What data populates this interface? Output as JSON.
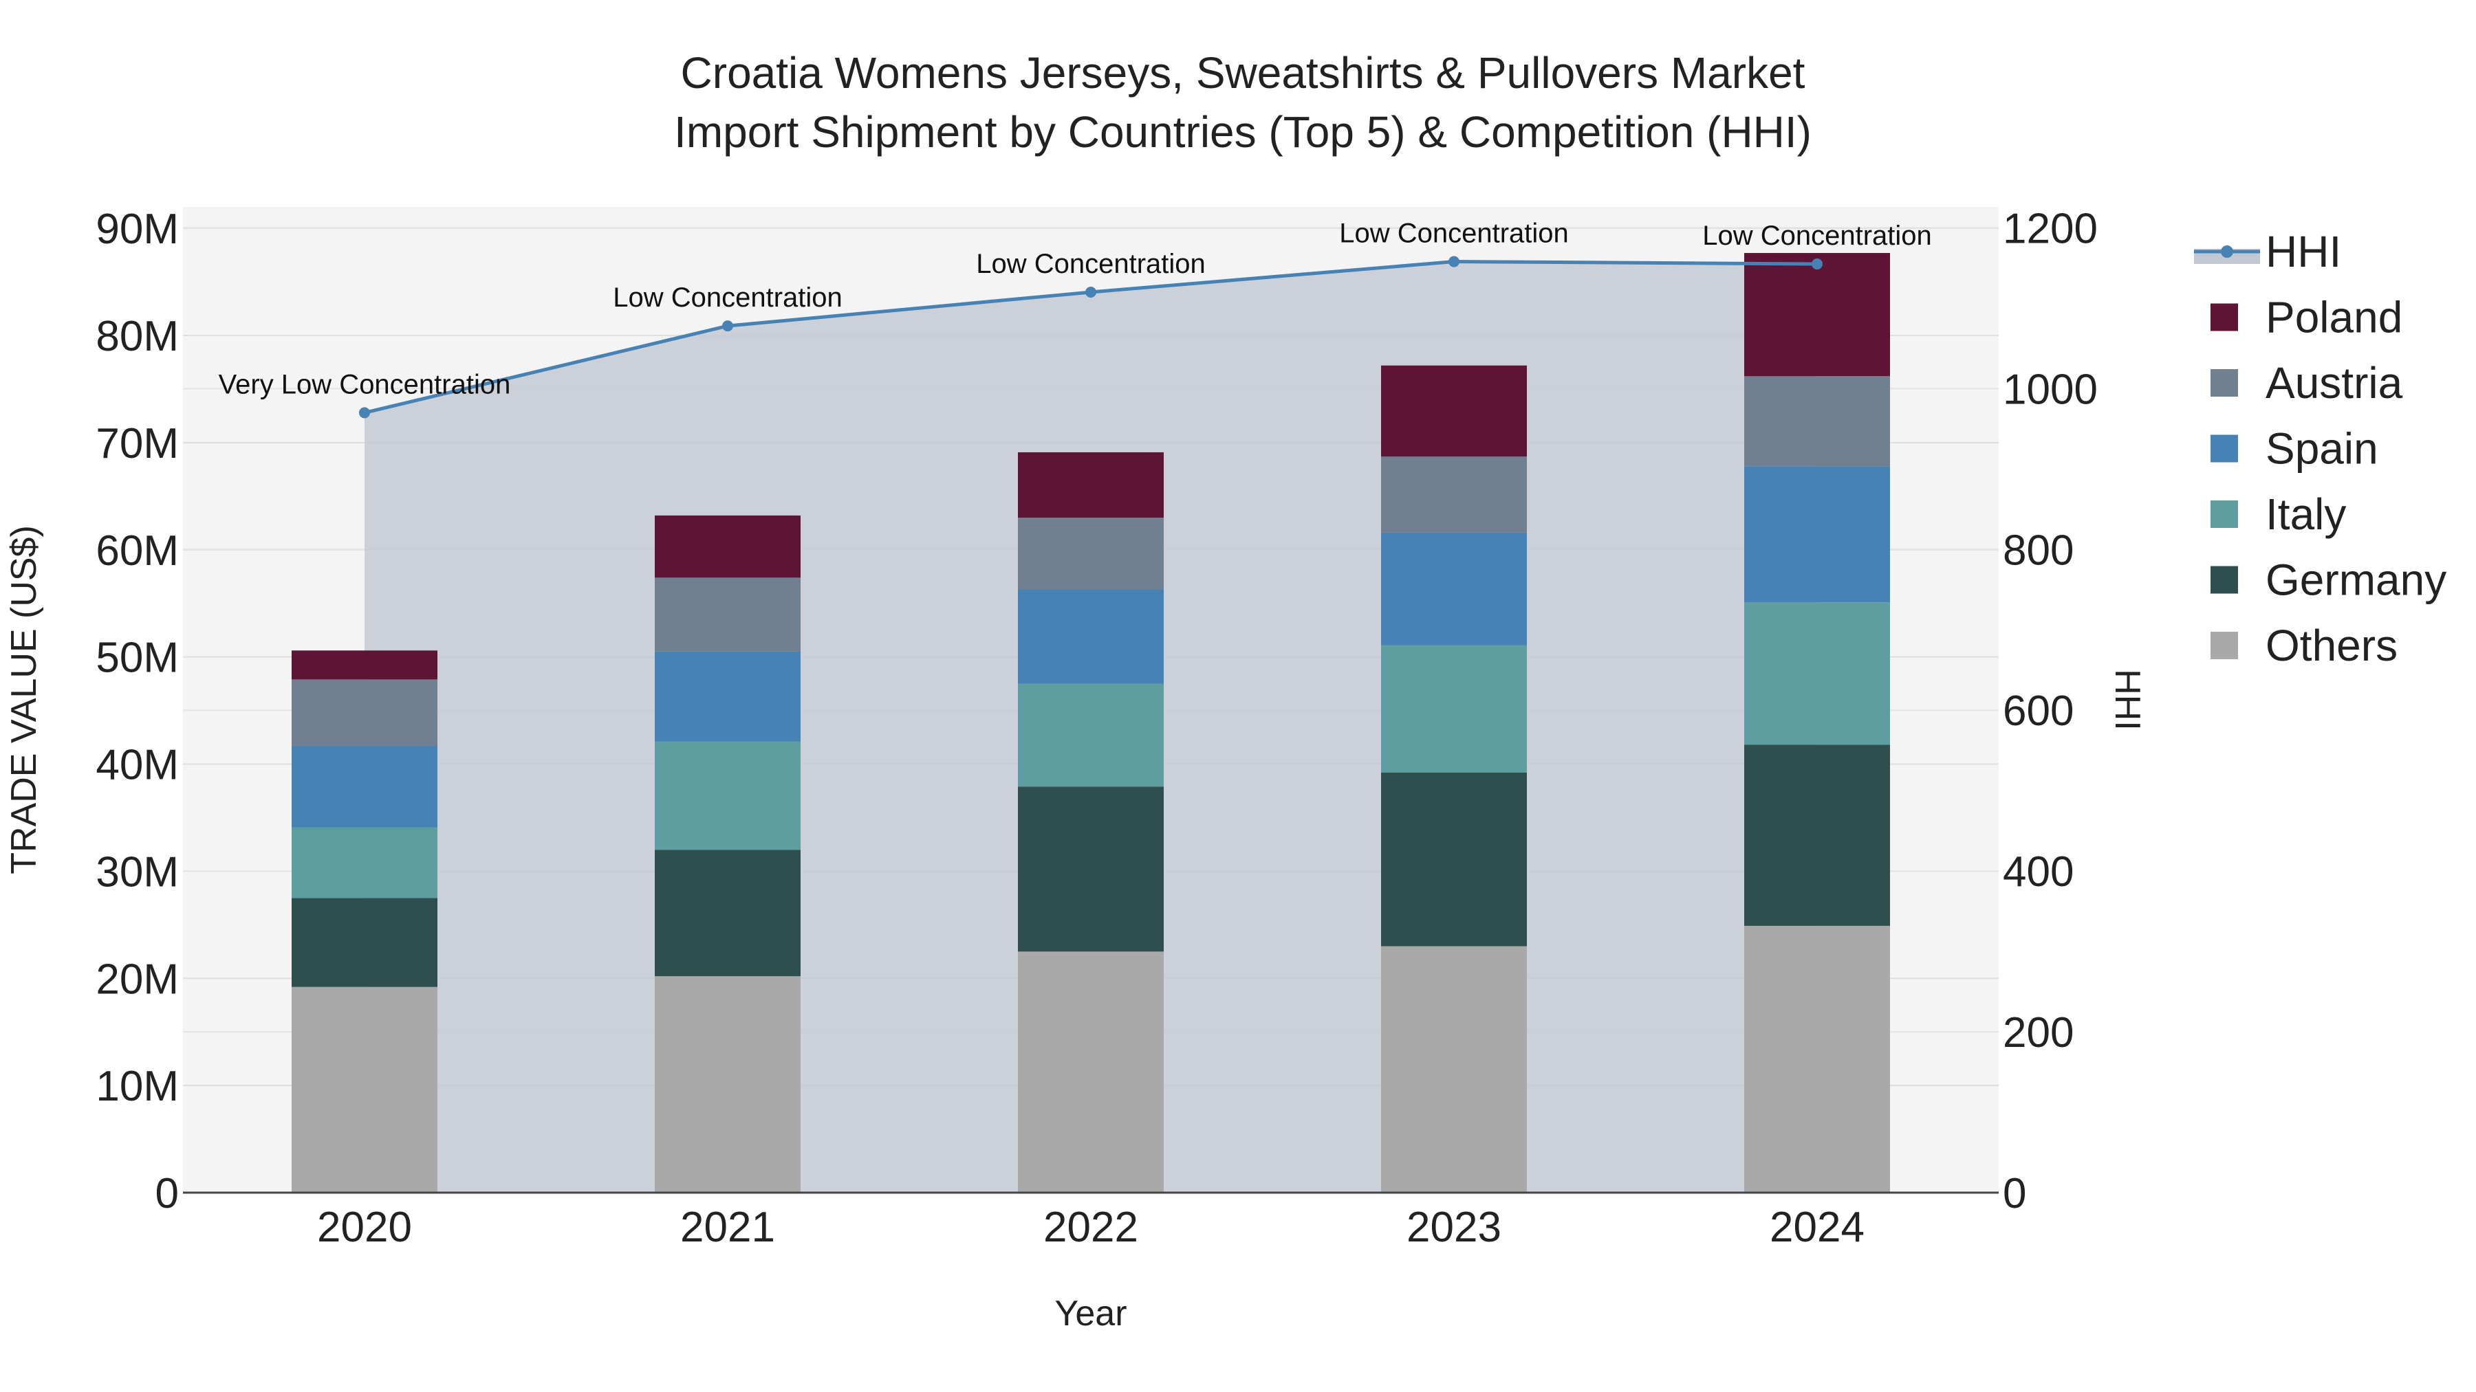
{
  "chart_data": {
    "type": "bar",
    "title_line1": "Croatia Womens Jerseys, Sweatshirts & Pullovers Market",
    "title_line2": "Import Shipment by Countries (Top 5) & Competition (HHI)",
    "xlabel": "Year",
    "ylabel": "TRADE VALUE (US$)",
    "y2label": "HHI",
    "categories": [
      "2020",
      "2021",
      "2022",
      "2023",
      "2024"
    ],
    "ylim": [
      0,
      92000000
    ],
    "y_ticks": [
      {
        "value": 0,
        "label": "0"
      },
      {
        "value": 10000000,
        "label": "10M"
      },
      {
        "value": 20000000,
        "label": "20M"
      },
      {
        "value": 30000000,
        "label": "30M"
      },
      {
        "value": 40000000,
        "label": "40M"
      },
      {
        "value": 50000000,
        "label": "50M"
      },
      {
        "value": 60000000,
        "label": "60M"
      },
      {
        "value": 70000000,
        "label": "70M"
      },
      {
        "value": 80000000,
        "label": "80M"
      },
      {
        "value": 90000000,
        "label": "90M"
      }
    ],
    "y2lim": [
      0,
      1226
    ],
    "y2_ticks": [
      {
        "value": 0,
        "label": "0"
      },
      {
        "value": 200,
        "label": "200"
      },
      {
        "value": 400,
        "label": "400"
      },
      {
        "value": 600,
        "label": "600"
      },
      {
        "value": 800,
        "label": "800"
      },
      {
        "value": 1000,
        "label": "1000"
      },
      {
        "value": 1200,
        "label": "1200"
      }
    ],
    "series": [
      {
        "name": "Others",
        "color": "#a9a9a9",
        "values": [
          19200000,
          20200000,
          22500000,
          23000000,
          24900000
        ]
      },
      {
        "name": "Germany",
        "color": "#2f4f4f",
        "values": [
          8300000,
          11800000,
          15400000,
          16200000,
          16900000
        ]
      },
      {
        "name": "Italy",
        "color": "#5f9ea0",
        "values": [
          6600000,
          10100000,
          9600000,
          11900000,
          13300000
        ]
      },
      {
        "name": "Spain",
        "color": "#4682b4",
        "values": [
          7600000,
          8400000,
          8800000,
          10500000,
          12700000
        ]
      },
      {
        "name": "Austria",
        "color": "#708090",
        "values": [
          6200000,
          6900000,
          6700000,
          7100000,
          8400000
        ]
      },
      {
        "name": "Poland",
        "color": "#5e1535",
        "values": [
          2700000,
          5800000,
          6100000,
          8500000,
          11500000
        ]
      }
    ],
    "hhi": {
      "name": "HHI",
      "color": "#4682b4",
      "values": [
        970,
        1078,
        1120,
        1158,
        1155
      ],
      "annotations": [
        "Very Low Concentration",
        "Low Concentration",
        "Low Concentration",
        "Low Concentration",
        "Low Concentration"
      ]
    },
    "legend": [
      "HHI",
      "Poland",
      "Austria",
      "Spain",
      "Italy",
      "Germany",
      "Others"
    ],
    "legend_position": "right"
  }
}
